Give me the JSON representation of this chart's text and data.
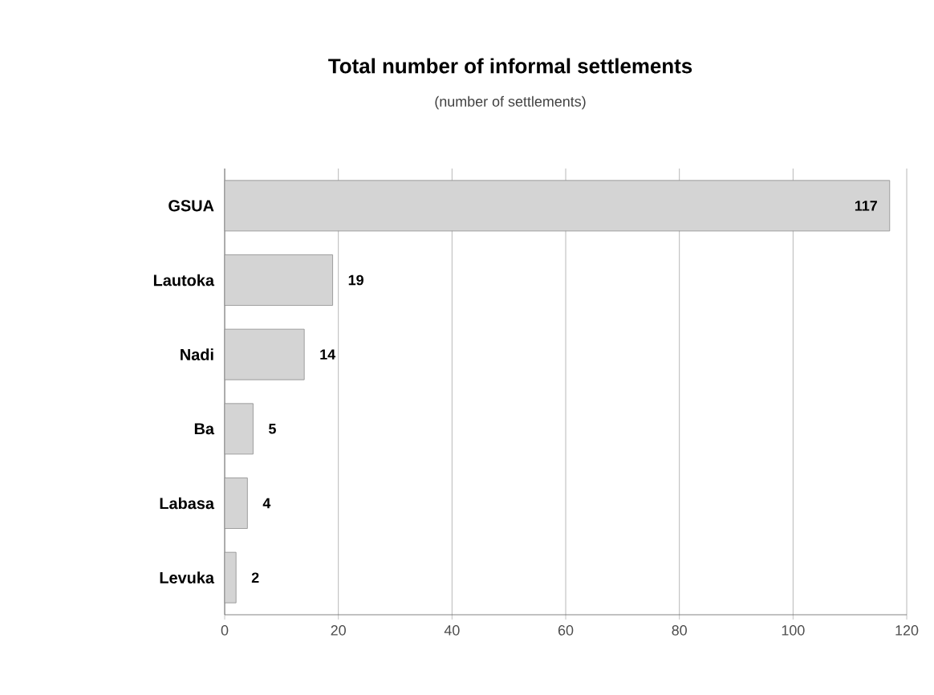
{
  "chart_data": {
    "type": "bar",
    "orientation": "horizontal",
    "title": "Total number of informal settlements",
    "subtitle": "(number of settlements)",
    "categories": [
      "GSUA",
      "Lautoka",
      "Nadi",
      "Ba",
      "Labasa",
      "Levuka"
    ],
    "values": [
      117,
      19,
      14,
      5,
      4,
      2
    ],
    "color": "#d4d4d4",
    "xlim": [
      0,
      120
    ],
    "xticks": [
      0,
      20,
      40,
      60,
      80,
      100,
      120
    ],
    "grid": "x",
    "data_labels": true
  }
}
